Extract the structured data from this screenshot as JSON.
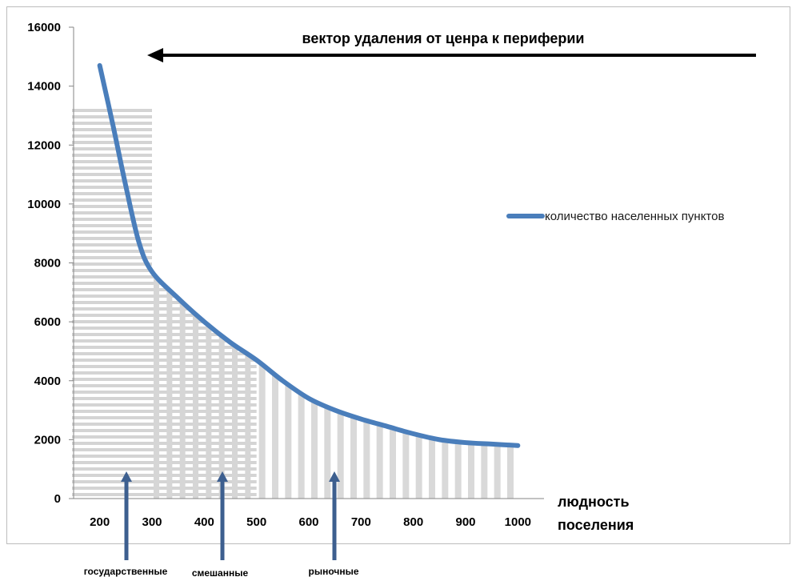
{
  "chart_data": {
    "type": "line",
    "title": "вектор удаления от ценра к периферии",
    "xlabel_line1": "людность",
    "xlabel_line2": "поселения",
    "ylabel": "",
    "ylim": [
      0,
      16000
    ],
    "yticks": [
      "0",
      "2000",
      "4000",
      "6000",
      "8000",
      "10000",
      "12000",
      "14000",
      "16000"
    ],
    "xticks": [
      "200",
      "300",
      "400",
      "500",
      "600",
      "700",
      "800",
      "900",
      "1000"
    ],
    "xlim": [
      150,
      1050
    ],
    "series": [
      {
        "name": "количество населенных пунктов",
        "color": "#4a7ebb",
        "x": [
          200,
          225,
          250,
          275,
          300,
          350,
          400,
          450,
          500,
          550,
          600,
          650,
          700,
          750,
          800,
          850,
          900,
          950,
          1000
        ],
        "y": [
          14700,
          12700,
          10600,
          8700,
          7700,
          6800,
          6000,
          5300,
          4700,
          4000,
          3400,
          3000,
          2700,
          2450,
          2200,
          2000,
          1900,
          1850,
          1800
        ]
      }
    ],
    "zones": [
      {
        "label": "государственные",
        "from": 150,
        "to": 300,
        "fill": "horizontal-hatch"
      },
      {
        "label": "смешанные",
        "from": 300,
        "to": 500,
        "fill": "crosshatch"
      },
      {
        "label": "рыночные",
        "from": 500,
        "to": 1000,
        "fill": "vertical-hatch"
      }
    ],
    "arrow_direction": "right-to-left",
    "legend_position": "right",
    "grid": false
  }
}
